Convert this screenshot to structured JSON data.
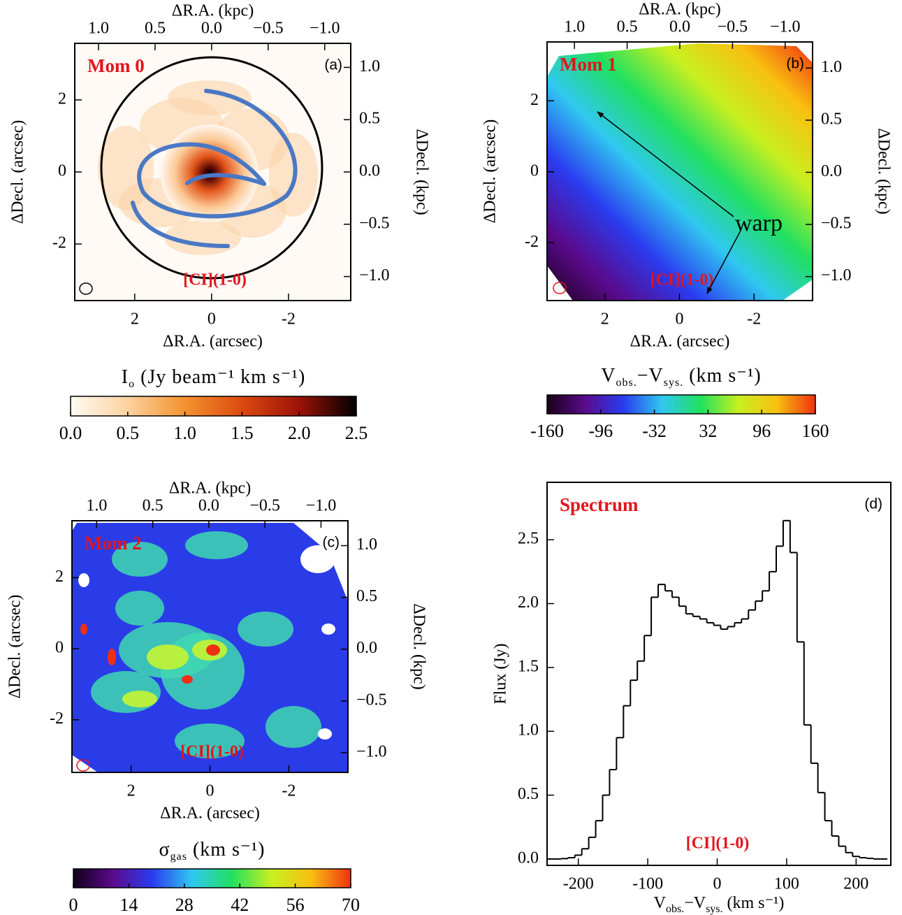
{
  "chart_data": [
    {
      "type": "map",
      "title": "Mom 0",
      "panel_label": "(a)",
      "annotation": "[CI](1-0)",
      "xlabel": "ΔR.A. (arcsec)",
      "ylabel": "ΔDecl. (arcsec)",
      "x2label": "ΔR.A. (kpc)",
      "y2label": "ΔDecl. (kpc)",
      "xlim": [
        3.56,
        -3.62
      ],
      "xticks": [
        2,
        0,
        -2
      ],
      "ylim": [
        -3.57,
        3.57
      ],
      "yticks": [
        -2,
        0,
        2
      ],
      "x2lim": [
        1.21,
        -1.23
      ],
      "x2ticks": [
        {
          "value": 1,
          "label": "1.0"
        },
        0.5,
        {
          "value": 0,
          "label": "0.0"
        },
        {
          "value": -0.5,
          "label": "−0.5"
        },
        {
          "value": -1,
          "label": "−1.0"
        }
      ],
      "y2lim": [
        -1.23,
        1.23
      ],
      "y2ticks": [
        {
          "value": 1,
          "label": "1.0"
        },
        0.5,
        {
          "value": 0,
          "label": "0.0"
        },
        {
          "value": -0.5,
          "label": "−0.5"
        },
        {
          "value": -1,
          "label": "−1.0"
        }
      ],
      "colorbar": {
        "label": [
          {
            "text": "I"
          },
          {
            "text": "o",
            "sub": true
          },
          {
            "text": " (Jy beam⁻¹ km s⁻¹)"
          }
        ],
        "lim": [
          0,
          2.5
        ],
        "ticks": [
          {
            "value": 0,
            "label": "0.0"
          },
          0.5,
          {
            "value": 1,
            "label": "1.0"
          },
          1.5,
          {
            "value": 2,
            "label": "2.0"
          },
          2.5
        ],
        "colors": [
          "#fffaf4",
          "#fcd2a0",
          "#f3922f",
          "#dc4a10",
          "#9c1208",
          "#000000"
        ]
      }
    },
    {
      "type": "map",
      "title": "Mom 1",
      "panel_label": "(b)",
      "annotation": "[CI](1-0)",
      "note": "warp",
      "xlabel": "ΔR.A. (arcsec)",
      "ylabel": "ΔDecl. (arcsec)",
      "x2label": "ΔR.A. (kpc)",
      "y2label": "ΔDecl. (kpc)",
      "xlim": [
        3.55,
        -3.57
      ],
      "xticks": [
        2,
        0,
        -2
      ],
      "ylim": [
        -3.63,
        3.66
      ],
      "yticks": [
        -2,
        0,
        2
      ],
      "x2lim": [
        1.26,
        -1.26
      ],
      "x2ticks": [
        {
          "value": 1,
          "label": "1.0"
        },
        0.5,
        {
          "value": 0,
          "label": "0.0"
        },
        {
          "value": -0.5,
          "label": "−0.5"
        },
        {
          "value": -1,
          "label": "−1.0"
        }
      ],
      "y2lim": [
        -1.23,
        1.25
      ],
      "y2ticks": [
        {
          "value": 1,
          "label": "1.0"
        },
        0.5,
        {
          "value": 0,
          "label": "0.0"
        },
        {
          "value": -0.5,
          "label": "−0.5"
        },
        {
          "value": -1,
          "label": "−1.0"
        }
      ],
      "colorbar": {
        "label": [
          {
            "text": "V"
          },
          {
            "text": "obs.",
            "sub": true
          },
          {
            "text": "−V"
          },
          {
            "text": "sys.",
            "sub": true
          },
          {
            "text": " (km s⁻¹)"
          }
        ],
        "lim": [
          -160,
          160
        ],
        "ticks": [
          -160,
          -96,
          -32,
          32,
          96,
          160
        ],
        "colors": [
          "#1a0018",
          "#5a0a8c",
          "#2a3cf0",
          "#30c8f0",
          "#20e060",
          "#c8f020",
          "#f8c010",
          "#f03010"
        ]
      }
    },
    {
      "type": "map",
      "title": "Mom 2",
      "panel_label": "(c)",
      "annotation": "[CI](1-0)",
      "xlabel": "ΔR.A. (arcsec)",
      "ylabel": "ΔDecl. (arcsec)",
      "x2label": "ΔR.A. (kpc)",
      "y2label": "ΔDecl. (kpc)",
      "xlim": [
        3.5,
        -3.5
      ],
      "xticks": [
        2,
        0,
        -2
      ],
      "ylim": [
        -3.48,
        3.6
      ],
      "yticks": [
        -2,
        0,
        2
      ],
      "x2lim": [
        1.22,
        -1.24
      ],
      "x2ticks": [
        {
          "value": 1,
          "label": "1.0"
        },
        0.5,
        {
          "value": 0,
          "label": "0.0"
        },
        {
          "value": -0.5,
          "label": "−0.5"
        },
        {
          "value": -1,
          "label": "−1.0"
        }
      ],
      "y2lim": [
        -1.19,
        1.24
      ],
      "y2ticks": [
        {
          "value": 1,
          "label": "1.0"
        },
        0.5,
        {
          "value": 0,
          "label": "0.0"
        },
        {
          "value": -0.5,
          "label": "−0.5"
        },
        {
          "value": -1,
          "label": "−1.0"
        }
      ],
      "colorbar": {
        "label": [
          {
            "text": "σ"
          },
          {
            "text": "gas",
            "sub": true
          },
          {
            "text": " (km s⁻¹)"
          }
        ],
        "lim": [
          0,
          70
        ],
        "ticks": [
          0,
          14,
          28,
          42,
          56,
          70
        ],
        "colors": [
          "#10001a",
          "#5a0a8c",
          "#2a3cf0",
          "#30c8f0",
          "#20e060",
          "#c8f020",
          "#f8c010",
          "#f03010"
        ]
      }
    },
    {
      "type": "histogram",
      "title": "Spectrum",
      "panel_label": "(d)",
      "annotation": "[CI](1-0)",
      "xlabel": [
        {
          "text": "V"
        },
        {
          "text": "obs.",
          "sub": true
        },
        {
          "text": "−V"
        },
        {
          "text": "sys.",
          "sub": true
        },
        {
          "text": " (km s⁻¹)"
        }
      ],
      "ylabel": "Flux (Jy)",
      "color": "#000000",
      "bins": [
        -245,
        -235,
        -225,
        -215,
        -205,
        -195,
        -185,
        -175,
        -165,
        -155,
        -145,
        -135,
        -125,
        -115,
        -105,
        -95,
        -85,
        -75,
        -65,
        -55,
        -45,
        -35,
        -25,
        -15,
        -5,
        5,
        15,
        25,
        35,
        45,
        55,
        65,
        75,
        85,
        95,
        105,
        115,
        125,
        135,
        145,
        155,
        165,
        175,
        185,
        195,
        205,
        215,
        225,
        235,
        245
      ],
      "values": [
        0,
        0,
        0.003,
        0.01,
        0.03,
        0.08,
        0.17,
        0.3,
        0.5,
        0.7,
        0.95,
        1.2,
        1.4,
        1.55,
        1.75,
        2.05,
        2.15,
        2.1,
        2.05,
        1.98,
        1.92,
        1.9,
        1.88,
        1.85,
        1.83,
        1.8,
        1.82,
        1.85,
        1.88,
        1.95,
        2.02,
        2.1,
        2.25,
        2.45,
        2.65,
        2.4,
        1.7,
        1.05,
        0.75,
        0.52,
        0.3,
        0.18,
        0.1,
        0.05,
        0.02,
        0.01,
        0.005,
        0,
        0
      ],
      "xlim": [
        -245,
        250
      ],
      "xticks": [
        -200,
        -100,
        0,
        100,
        200
      ],
      "ylim": [
        -0.05,
        2.95
      ],
      "yticks": [
        {
          "value": 0,
          "label": "0.0"
        },
        0.5,
        {
          "value": 1,
          "label": "1.0"
        },
        1.5,
        {
          "value": 2,
          "label": "2.0"
        },
        2.5
      ]
    }
  ]
}
